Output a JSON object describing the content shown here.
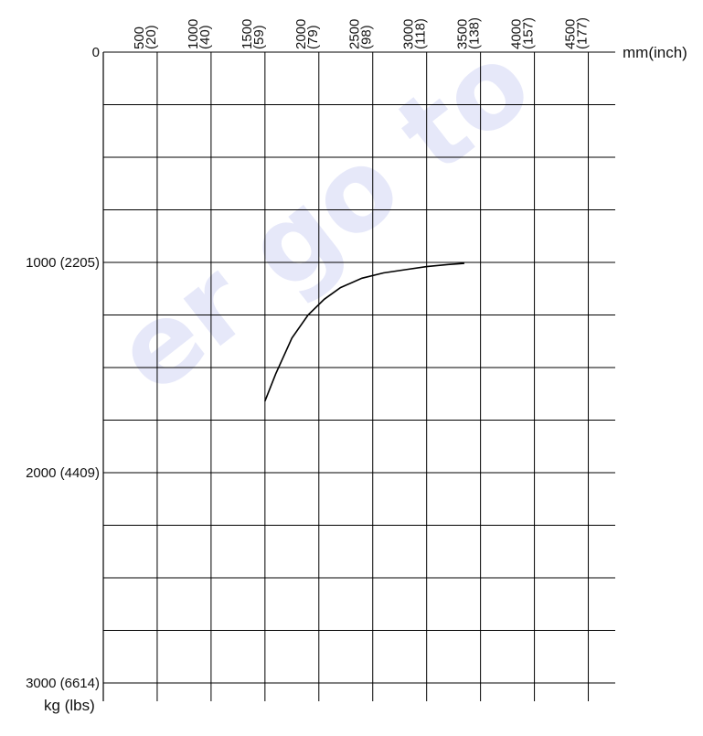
{
  "chart_data": {
    "type": "line",
    "title": "",
    "x_unit_label": "mm(inch)",
    "y_unit_label": "kg (lbs)",
    "x_range_mm": [
      0,
      4750
    ],
    "y_range_kg": [
      0,
      3000
    ],
    "y_inverted": true,
    "grid": true,
    "x_ticks": [
      {
        "mm": 500,
        "line1": "500",
        "line2": "(20)"
      },
      {
        "mm": 1000,
        "line1": "1000",
        "line2": "(40)"
      },
      {
        "mm": 1500,
        "line1": "1500",
        "line2": "(59)"
      },
      {
        "mm": 2000,
        "line1": "2000",
        "line2": "(79)"
      },
      {
        "mm": 2500,
        "line1": "2500",
        "line2": "(98)"
      },
      {
        "mm": 3000,
        "line1": "3000",
        "line2": "(118)"
      },
      {
        "mm": 3500,
        "line1": "3500",
        "line2": "(138)"
      },
      {
        "mm": 4000,
        "line1": "4000",
        "line2": "(157)"
      },
      {
        "mm": 4500,
        "line1": "4500",
        "line2": "(177)"
      }
    ],
    "y_ticks": [
      {
        "kg": 0,
        "label": "0"
      },
      {
        "kg": 1000,
        "label": "1000 (2205)"
      },
      {
        "kg": 2000,
        "label": "2000 (4409)"
      },
      {
        "kg": 3000,
        "label": "3000 (6614)"
      }
    ],
    "y_grid_step": 250,
    "series": [
      {
        "color": "#000000",
        "points": [
          [
            1500,
            1660
          ],
          [
            1600,
            1530
          ],
          [
            1750,
            1360
          ],
          [
            1900,
            1250
          ],
          [
            2050,
            1175
          ],
          [
            2200,
            1120
          ],
          [
            2400,
            1075
          ],
          [
            2600,
            1050
          ],
          [
            2800,
            1035
          ],
          [
            3000,
            1020
          ],
          [
            3200,
            1010
          ],
          [
            3350,
            1005
          ]
        ]
      }
    ]
  },
  "watermark": {
    "text": "er go to",
    "color": "#c8cdf2"
  }
}
